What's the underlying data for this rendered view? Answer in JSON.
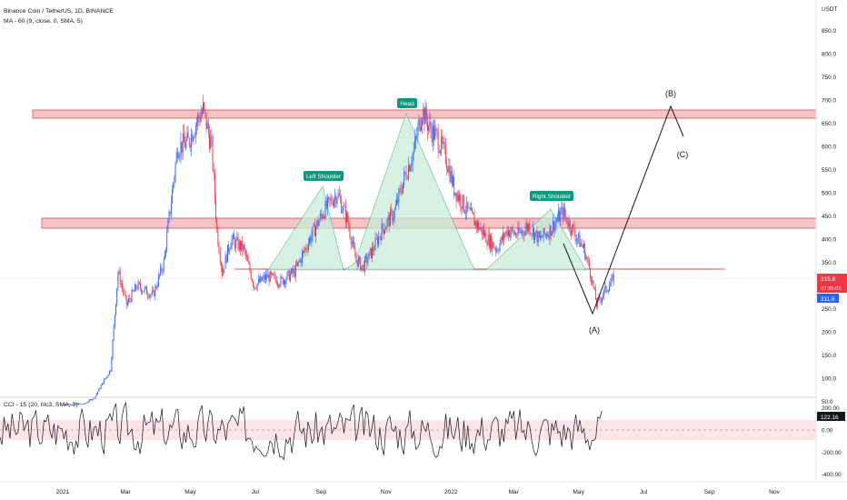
{
  "header": {
    "symbol_line": "Binance Coin / TetherUS, 1D, BINANCE",
    "indicator_line": "MA - 60 (9, close, 0, SMA, 5)",
    "currency": "USDT"
  },
  "cci": {
    "label": "CCI - 15 (20, hlc3, SMA, 3)",
    "current_value": "122.16",
    "axis_ticks": [
      "200.00",
      "0.00",
      "-200.00",
      "-400.00"
    ],
    "axis_values": [
      200,
      0,
      -200,
      -400
    ],
    "band_top": 100,
    "band_bottom": -100
  },
  "price_axis": {
    "ticks": [
      "850.0",
      "800.0",
      "750.0",
      "700.0",
      "650.0",
      "600.0",
      "550.0",
      "500.0",
      "450.0",
      "400.0",
      "350.0",
      "300.0",
      "250.0",
      "200.0",
      "150.0",
      "100.0",
      "50.0"
    ],
    "values": [
      850,
      800,
      750,
      700,
      650,
      600,
      550,
      500,
      450,
      400,
      350,
      300,
      250,
      200,
      150,
      100,
      50
    ]
  },
  "last_price": {
    "value": "315.8",
    "countdown": "07:35:01",
    "ma_value": "311.6",
    "close_color": "#f23645",
    "ma_color": "#2962ff"
  },
  "time_axis": {
    "labels": [
      "2021",
      "Mar",
      "May",
      "Jul",
      "Sep",
      "Nov",
      "2022",
      "Mar",
      "May",
      "Jul",
      "Sep",
      "Nov"
    ],
    "days": [
      0,
      59,
      120,
      181,
      243,
      304,
      365,
      424,
      485,
      546,
      608,
      669
    ]
  },
  "patterns": {
    "left_shoulder": "Left Shoulder",
    "head": "Head",
    "right_shoulder": "Right Shoulder",
    "wave_a": "(A)",
    "wave_b": "(B)",
    "wave_c": "(C)"
  },
  "zones": {
    "resistance_top": {
      "low": 663,
      "high": 676
    },
    "resistance_mid": {
      "low": 424,
      "high": 445
    },
    "neckline": 333
  },
  "colors": {
    "zone_fill": "#f3b9bd",
    "zone_border": "#d32f2f",
    "candle_up": "#2962ff",
    "candle_down": "#f23645",
    "pattern_fill": "#c9ecd9",
    "pattern_label": "#089981",
    "cci_band": "#fde4e7"
  }
}
